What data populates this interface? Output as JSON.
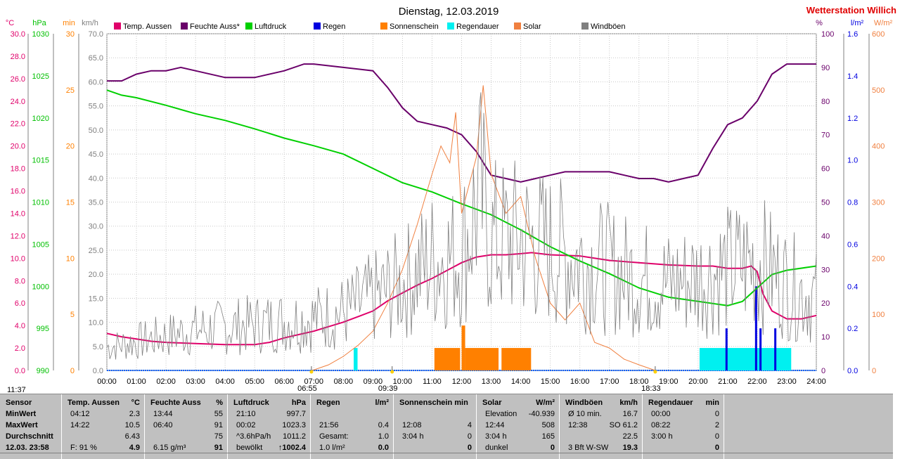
{
  "station": "Wetterstation Willich",
  "chart_data": {
    "type": "line",
    "title": "Dienstag, 12.03.2019",
    "x_ticks": [
      "00:00",
      "01:00",
      "02:00",
      "03:00",
      "04:00",
      "05:00",
      "06:00",
      "07:00",
      "08:00",
      "09:00",
      "10:00",
      "11:00",
      "12:00",
      "13:00",
      "14:00",
      "15:00",
      "16:00",
      "17:00",
      "18:00",
      "19:00",
      "20:00",
      "21:00",
      "22:00",
      "23:00",
      "24:00"
    ],
    "x_range_hours": [
      0,
      24
    ],
    "grid": true,
    "legend_position": "top",
    "legend": [
      {
        "name": "Temp. Aussen",
        "color": "#e0006a"
      },
      {
        "name": "Feuchte Auss*",
        "color": "#6a006a"
      },
      {
        "name": "Luftdruck",
        "color": "#00d000"
      },
      {
        "name": "Regen",
        "color": "#0000e0"
      },
      {
        "name": "Sonnenschein",
        "color": "#ff8000"
      },
      {
        "name": "Regendauer",
        "color": "#00f0f0"
      },
      {
        "name": "Solar",
        "color": "#f08040"
      },
      {
        "name": "Windböen",
        "color": "#808080"
      }
    ],
    "axes": {
      "temp": {
        "unit": "°C",
        "color": "#e0006a",
        "min": 0,
        "max": 30,
        "ticks": [
          "0.0",
          "2.0",
          "4.0",
          "6.0",
          "8.0",
          "10.0",
          "12.0",
          "14.0",
          "16.0",
          "18.0",
          "20.0",
          "22.0",
          "24.0",
          "26.0",
          "28.0",
          "30.0"
        ]
      },
      "pressure": {
        "unit": "hPa",
        "color": "#00c000",
        "min": 990,
        "max": 1030,
        "ticks": [
          "990",
          "995",
          "1000",
          "1005",
          "1010",
          "1015",
          "1020",
          "1025",
          "1030"
        ]
      },
      "sunmin": {
        "unit": "min",
        "color": "#ff8000",
        "min": 0,
        "max": 30,
        "ticks": [
          "0",
          "5",
          "10",
          "15",
          "20",
          "25",
          "30"
        ]
      },
      "wind": {
        "unit": "km/h",
        "color": "#808080",
        "min": 0,
        "max": 70,
        "ticks": [
          "0.0",
          "5.0",
          "10.0",
          "15.0",
          "20.0",
          "25.0",
          "30.0",
          "35.0",
          "40.0",
          "45.0",
          "50.0",
          "55.0",
          "60.0",
          "65.0",
          "70.0"
        ]
      },
      "humidity": {
        "unit": "%",
        "color": "#6a006a",
        "min": 0,
        "max": 100,
        "ticks": [
          "0",
          "10",
          "20",
          "30",
          "40",
          "50",
          "60",
          "70",
          "80",
          "90",
          "100"
        ]
      },
      "rain": {
        "unit": "l/m²",
        "color": "#0000e0",
        "min": 0,
        "max": 1.6,
        "ticks": [
          "0.0",
          "0.2",
          "0.4",
          "0.6",
          "0.8",
          "1.0",
          "1.2",
          "1.4",
          "1.6"
        ]
      },
      "solar": {
        "unit": "W/m²",
        "color": "#f08040",
        "min": 0,
        "max": 600,
        "ticks": [
          "0",
          "100",
          "200",
          "300",
          "400",
          "500",
          "600"
        ]
      }
    },
    "series": [
      {
        "name": "Temp. Aussen",
        "axis": "temp",
        "color": "#e0006a",
        "points": [
          [
            0,
            3.3
          ],
          [
            0.5,
            3.0
          ],
          [
            1,
            2.8
          ],
          [
            1.5,
            2.6
          ],
          [
            2,
            2.5
          ],
          [
            3,
            2.4
          ],
          [
            4,
            2.3
          ],
          [
            4.2,
            2.3
          ],
          [
            5,
            2.3
          ],
          [
            5.5,
            2.5
          ],
          [
            6,
            2.9
          ],
          [
            6.5,
            3.2
          ],
          [
            7,
            3.5
          ],
          [
            7.5,
            3.9
          ],
          [
            8,
            4.3
          ],
          [
            8.5,
            4.8
          ],
          [
            9,
            5.3
          ],
          [
            9.5,
            6.2
          ],
          [
            10,
            6.9
          ],
          [
            10.5,
            7.6
          ],
          [
            11,
            8.2
          ],
          [
            11.5,
            8.9
          ],
          [
            12,
            9.6
          ],
          [
            12.5,
            10.1
          ],
          [
            13,
            10.3
          ],
          [
            13.5,
            10.3
          ],
          [
            14,
            10.4
          ],
          [
            14.37,
            10.5
          ],
          [
            15,
            10.3
          ],
          [
            16,
            10.2
          ],
          [
            17,
            9.8
          ],
          [
            18,
            9.6
          ],
          [
            19,
            9.4
          ],
          [
            20,
            9.3
          ],
          [
            20.5,
            9.3
          ],
          [
            21,
            9.1
          ],
          [
            21.5,
            9.1
          ],
          [
            21.8,
            9.3
          ],
          [
            22,
            8.8
          ],
          [
            22.2,
            6.8
          ],
          [
            22.5,
            5.3
          ],
          [
            23,
            4.6
          ],
          [
            23.5,
            4.6
          ],
          [
            24,
            4.9
          ]
        ]
      },
      {
        "name": "Feuchte Auss*",
        "axis": "humidity",
        "color": "#6a006a",
        "points": [
          [
            0,
            86
          ],
          [
            0.5,
            86
          ],
          [
            1,
            88
          ],
          [
            1.5,
            89
          ],
          [
            2,
            89
          ],
          [
            2.5,
            90
          ],
          [
            3,
            89
          ],
          [
            4,
            87
          ],
          [
            5,
            87
          ],
          [
            6,
            89
          ],
          [
            6.67,
            91
          ],
          [
            7,
            91
          ],
          [
            8,
            90
          ],
          [
            9,
            89
          ],
          [
            9.5,
            84
          ],
          [
            10,
            78
          ],
          [
            10.5,
            74
          ],
          [
            11,
            73
          ],
          [
            11.5,
            72
          ],
          [
            12,
            70
          ],
          [
            12.5,
            65
          ],
          [
            13,
            58
          ],
          [
            13.5,
            57
          ],
          [
            14,
            56
          ],
          [
            14.5,
            57
          ],
          [
            15,
            58
          ],
          [
            15.5,
            59
          ],
          [
            16,
            59
          ],
          [
            17,
            59
          ],
          [
            17.5,
            58
          ],
          [
            18,
            57
          ],
          [
            18.5,
            57
          ],
          [
            19,
            56
          ],
          [
            19.5,
            57
          ],
          [
            20,
            58
          ],
          [
            20.5,
            66
          ],
          [
            21,
            73
          ],
          [
            21.5,
            75
          ],
          [
            22,
            80
          ],
          [
            22.5,
            88
          ],
          [
            23,
            91
          ],
          [
            24,
            91
          ]
        ]
      },
      {
        "name": "Luftdruck",
        "axis": "pressure",
        "color": "#00d000",
        "points": [
          [
            0,
            1023.3
          ],
          [
            0.5,
            1022.7
          ],
          [
            1,
            1022.4
          ],
          [
            2,
            1021.5
          ],
          [
            3,
            1020.5
          ],
          [
            4,
            1019.7
          ],
          [
            5,
            1018.7
          ],
          [
            6,
            1017.6
          ],
          [
            7,
            1016.7
          ],
          [
            8,
            1015.7
          ],
          [
            9,
            1014.0
          ],
          [
            10,
            1012.3
          ],
          [
            11,
            1011.2
          ],
          [
            12,
            1009.8
          ],
          [
            13,
            1008.5
          ],
          [
            14,
            1006.7
          ],
          [
            15,
            1004.7
          ],
          [
            16,
            1003.0
          ],
          [
            17,
            1001.5
          ],
          [
            18,
            999.8
          ],
          [
            19,
            998.7
          ],
          [
            20,
            998.2
          ],
          [
            21,
            997.7
          ],
          [
            21.5,
            998.2
          ],
          [
            22,
            999.8
          ],
          [
            22.5,
            1001.4
          ],
          [
            23,
            1001.9
          ],
          [
            24,
            1002.4
          ]
        ]
      },
      {
        "name": "Solar",
        "axis": "solar",
        "color": "#f08040",
        "points": [
          [
            6.95,
            0
          ],
          [
            7.5,
            10
          ],
          [
            8,
            25
          ],
          [
            8.5,
            45
          ],
          [
            9,
            70
          ],
          [
            9.5,
            120
          ],
          [
            10,
            180
          ],
          [
            10.5,
            260
          ],
          [
            11,
            350
          ],
          [
            11.3,
            400
          ],
          [
            11.6,
            370
          ],
          [
            11.8,
            460
          ],
          [
            12,
            280
          ],
          [
            12.5,
            380
          ],
          [
            12.73,
            508
          ],
          [
            13,
            350
          ],
          [
            13.5,
            280
          ],
          [
            14,
            310
          ],
          [
            14.5,
            200
          ],
          [
            15,
            120
          ],
          [
            15.5,
            90
          ],
          [
            16,
            120
          ],
          [
            16.5,
            50
          ],
          [
            17,
            40
          ],
          [
            17.5,
            20
          ],
          [
            18,
            10
          ],
          [
            18.55,
            0
          ]
        ]
      },
      {
        "name": "Windböen",
        "axis": "wind",
        "color": "#808080",
        "envelope": [
          [
            0,
            8
          ],
          [
            1,
            10
          ],
          [
            2,
            12
          ],
          [
            3,
            14
          ],
          [
            4,
            15
          ],
          [
            5,
            16
          ],
          [
            6,
            17
          ],
          [
            7,
            18
          ],
          [
            8,
            20
          ],
          [
            9,
            25
          ],
          [
            10,
            30
          ],
          [
            11,
            38
          ],
          [
            12,
            40
          ],
          [
            12.63,
            61.2
          ],
          [
            13,
            45
          ],
          [
            14,
            45
          ],
          [
            15,
            42
          ],
          [
            16,
            38
          ],
          [
            17,
            35
          ],
          [
            18,
            32
          ],
          [
            19,
            30
          ],
          [
            20,
            32
          ],
          [
            21,
            35
          ],
          [
            22,
            38
          ],
          [
            23,
            30
          ],
          [
            24,
            25
          ]
        ]
      }
    ],
    "bars": [
      {
        "name": "Sonnenschein",
        "axis": "sunmin",
        "color": "#ff8000",
        "blocks": [
          [
            11.08,
            11.95,
            2
          ],
          [
            12,
            12.12,
            4
          ],
          [
            12.12,
            13.25,
            2
          ],
          [
            13.35,
            14.35,
            2
          ]
        ]
      },
      {
        "name": "Regendauer",
        "axis": "sunmin",
        "color": "#00f0f0",
        "blocks": [
          [
            8.35,
            8.48,
            2
          ],
          [
            20.05,
            23.15,
            2
          ]
        ]
      },
      {
        "name": "Regen",
        "axis": "rain",
        "color": "#0000e0",
        "ticks": [
          [
            20.95,
            0.2
          ],
          [
            21.95,
            0.4
          ],
          [
            22.1,
            0.2
          ],
          [
            22.6,
            0.2
          ]
        ]
      }
    ],
    "markers": [
      {
        "label": "06:55",
        "hour": 6.92
      },
      {
        "label": "09:39",
        "hour": 9.65
      },
      {
        "label": "18:33",
        "hour": 18.55
      }
    ]
  },
  "corner_time": "11:37",
  "panel": {
    "sensor": {
      "title": "Sensor",
      "rows": [
        "MinWert",
        "MaxWert",
        "Durchschnitt",
        "12.03. 23:58"
      ]
    },
    "temp": {
      "title": "Temp. Aussen",
      "unit": "°C",
      "rows": [
        [
          "04:12",
          "2.3"
        ],
        [
          "14:22",
          "10.5"
        ],
        [
          "",
          "6.43"
        ]
      ],
      "last": "F: 91 %",
      "current": "4.9"
    },
    "hum": {
      "title": "Feuchte Auss",
      "unit": "%",
      "rows": [
        [
          "13:44",
          "55"
        ],
        [
          "06:40",
          "91"
        ],
        [
          "",
          "75"
        ]
      ],
      "last": "6.15 g/m³",
      "current": "91"
    },
    "press": {
      "title": "Luftdruck",
      "unit": "hPa",
      "rows": [
        [
          "21:10",
          "997.7"
        ],
        [
          "00:02",
          "1023.3"
        ],
        [
          "^3.6hPa/h",
          "1011.2"
        ]
      ],
      "last": "bewölkt",
      "current": "↑1002.4"
    },
    "rain": {
      "title": "Regen",
      "unit": "l/m²",
      "rows": [
        [
          "",
          ""
        ],
        [
          "21:56",
          "0.4"
        ],
        [
          "Gesamt:",
          "1.0"
        ]
      ],
      "last": "1.0 l/m²",
      "current": "0.0"
    },
    "sun": {
      "title": "Sonnenschein min",
      "unit": "",
      "rows": [
        [
          "",
          ""
        ],
        [
          "12:08",
          "4"
        ],
        [
          "3:04 h",
          "0"
        ]
      ],
      "last": "",
      "current": "0"
    },
    "solar": {
      "title": "Solar",
      "unit": "W/m²",
      "rows": [
        [
          "Elevation",
          "-40.939"
        ],
        [
          "12:44",
          "508"
        ],
        [
          "3:04 h",
          "165"
        ]
      ],
      "last": "dunkel",
      "current": "0"
    },
    "wind": {
      "title": "Windböen",
      "unit": "km/h",
      "rows": [
        [
          "Ø 10 min.",
          "16.7"
        ],
        [
          "12:38",
          "SO 61.2"
        ],
        [
          "",
          "22.5"
        ]
      ],
      "last": "3 Bft W-SW",
      "current": "19.3"
    },
    "raindur": {
      "title": "Regendauer",
      "unit": "min",
      "rows": [
        [
          "00:00",
          "0"
        ],
        [
          "08:22",
          "2"
        ],
        [
          "3:00 h",
          "0"
        ]
      ],
      "last": "",
      "current": "0"
    }
  }
}
